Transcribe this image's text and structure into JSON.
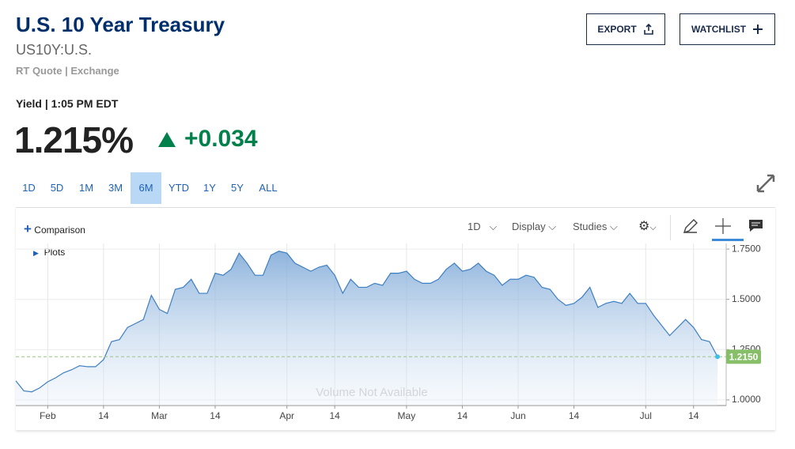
{
  "header": {
    "title": "U.S. 10 Year Treasury",
    "symbol": "US10Y:U.S.",
    "quote_info": "RT Quote | Exchange",
    "yield_label": "Yield | 1:05 PM EDT",
    "price": "1.215%",
    "change": "+0.034"
  },
  "buttons": {
    "export": "EXPORT",
    "watchlist": "WATCHLIST"
  },
  "ranges": [
    "1D",
    "5D",
    "1M",
    "3M",
    "6M",
    "YTD",
    "1Y",
    "5Y",
    "ALL"
  ],
  "selected_range": "6M",
  "toolbar": {
    "comparison": "Comparison",
    "interval": "1D",
    "display": "Display",
    "studies": "Studies",
    "plots": "Plots"
  },
  "chart_data": {
    "type": "area",
    "color": "#3d7fc1",
    "categories": [
      null,
      null,
      null,
      null,
      "Feb",
      null,
      null,
      null,
      null,
      null,
      null,
      "14",
      null,
      null,
      null,
      null,
      null,
      null,
      "Mar",
      null,
      null,
      null,
      null,
      null,
      null,
      "14",
      null,
      null,
      null,
      null,
      null,
      null,
      null,
      null,
      "Apr",
      null,
      null,
      null,
      null,
      null,
      "14",
      null,
      null,
      null,
      null,
      null,
      null,
      null,
      null,
      "May",
      null,
      null,
      null,
      null,
      null,
      null,
      "14",
      null,
      null,
      null,
      null,
      null,
      null,
      "Jun",
      null,
      null,
      null,
      null,
      null,
      null,
      "14",
      null,
      null,
      null,
      null,
      null,
      null,
      null,
      null,
      "Jul",
      null,
      null,
      null,
      null,
      null,
      "14",
      null,
      null,
      null
    ],
    "values": [
      1.095,
      1.045,
      1.04,
      1.06,
      1.09,
      1.11,
      1.135,
      1.15,
      1.17,
      1.165,
      1.165,
      1.2,
      1.29,
      1.3,
      1.36,
      1.38,
      1.4,
      1.52,
      1.45,
      1.43,
      1.55,
      1.56,
      1.6,
      1.53,
      1.53,
      1.63,
      1.62,
      1.65,
      1.73,
      1.68,
      1.62,
      1.62,
      1.72,
      1.74,
      1.73,
      1.68,
      1.66,
      1.64,
      1.66,
      1.67,
      1.62,
      1.53,
      1.6,
      1.56,
      1.56,
      1.58,
      1.57,
      1.63,
      1.63,
      1.64,
      1.6,
      1.58,
      1.58,
      1.6,
      1.65,
      1.68,
      1.64,
      1.65,
      1.68,
      1.64,
      1.62,
      1.57,
      1.6,
      1.6,
      1.62,
      1.61,
      1.56,
      1.55,
      1.5,
      1.47,
      1.48,
      1.51,
      1.56,
      1.46,
      1.48,
      1.49,
      1.48,
      1.53,
      1.48,
      1.48,
      1.42,
      1.37,
      1.32,
      1.36,
      1.4,
      1.36,
      1.3,
      1.29,
      1.215
    ],
    "ylim": [
      0.972,
      1.778
    ],
    "yticks": [
      {
        "value": 1,
        "label": "1.0000"
      },
      {
        "value": 1.25,
        "label": "1.2500"
      },
      {
        "value": 1.5,
        "label": "1.5000"
      },
      {
        "value": 1.75,
        "label": "1.7500"
      }
    ],
    "current": {
      "value": 1.215,
      "label": "1.2150"
    },
    "badge_color": "#86bf68",
    "annotation": "Volume Not Available",
    "grid": true
  }
}
